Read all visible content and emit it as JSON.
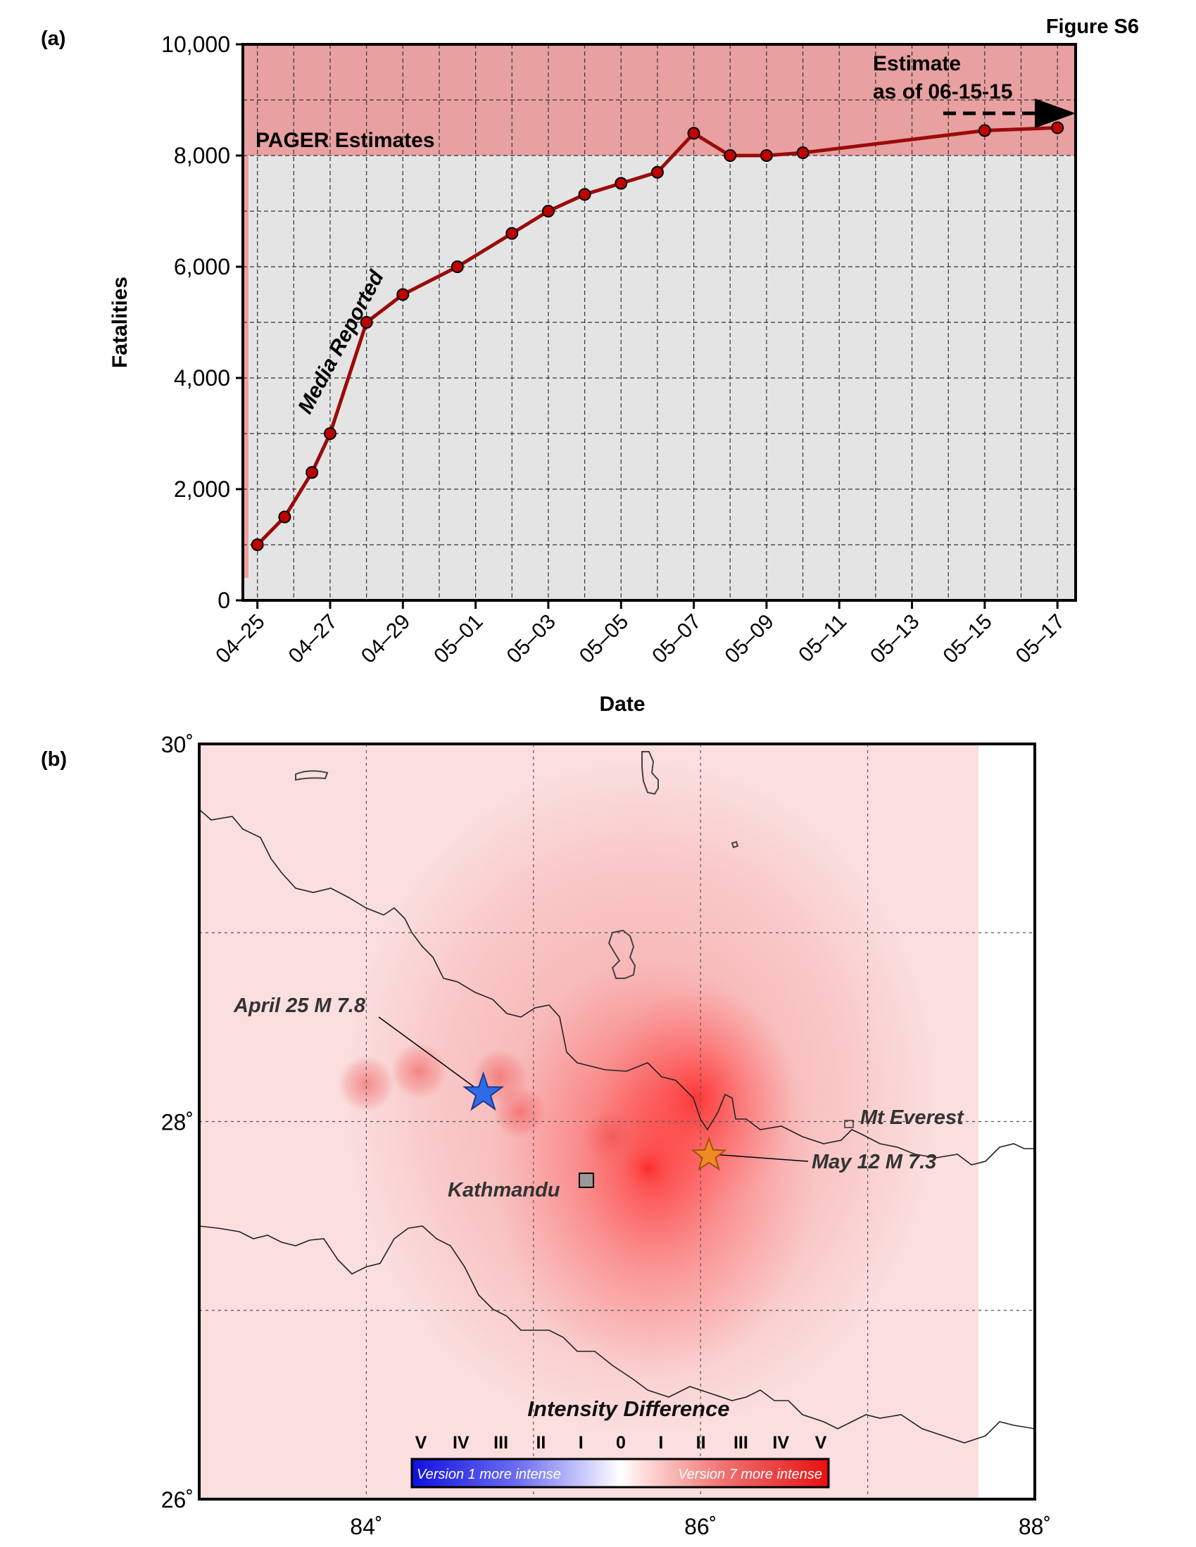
{
  "figure_label": "Figure S6",
  "chart_data": [
    {
      "panel": "(a)",
      "type": "line",
      "xlabel": "Date",
      "ylabel": "Fatalities",
      "xlim_days": [
        "04-24.6",
        "05-17.5"
      ],
      "ylim": [
        0,
        10000
      ],
      "x_tick_labels": [
        "04–25",
        "04–27",
        "04–29",
        "05–01",
        "05–03",
        "05–05",
        "05–07",
        "05–09",
        "05–11",
        "05–13",
        "05–15",
        "05–17"
      ],
      "y_tick_labels": [
        "0",
        "2,000",
        "4,000",
        "6,000",
        "8,000",
        "10,000"
      ],
      "y_ticks": [
        0,
        2000,
        4000,
        6000,
        8000,
        10000
      ],
      "grid": true,
      "band": {
        "label": "PAGER Estimates",
        "y_range": [
          8000,
          10000
        ],
        "color": "#e8a0a0"
      },
      "series": [
        {
          "name": "Media Reported",
          "color": "#9b0a0a",
          "x": [
            "04-25",
            "04-25.75",
            "04-26.5",
            "04-27",
            "04-28",
            "04-29",
            "04-30.5",
            "05-02",
            "05-03",
            "05-04",
            "05-05",
            "05-06",
            "05-07",
            "05-08",
            "05-09",
            "05-10",
            "05-15",
            "05-17"
          ],
          "y": [
            1000,
            1500,
            2300,
            3000,
            5000,
            5500,
            6000,
            6600,
            7000,
            7300,
            7500,
            7700,
            8400,
            8000,
            8000,
            8050,
            8450,
            8500
          ]
        }
      ],
      "annotations": [
        "Estimate",
        "as of 06-15-15"
      ]
    },
    {
      "panel": "(b)",
      "type": "heatmap",
      "x_tick_labels": [
        "84˚",
        "86˚",
        "88˚"
      ],
      "y_tick_labels": [
        "30˚",
        "28˚",
        "26˚"
      ],
      "xlim": [
        83,
        88
      ],
      "ylim": [
        26,
        30
      ],
      "colorbar": {
        "title": "Intensity Difference",
        "ticks": [
          "V",
          "IV",
          "III",
          "II",
          "I",
          "0",
          "I",
          "II",
          "III",
          "IV",
          "V"
        ],
        "left_label": "Version 1 more intense",
        "right_label": "Version 7 more intense"
      },
      "markers": [
        {
          "label": "April 25 M 7.8",
          "lon": 84.7,
          "lat": 28.15,
          "symbol": "star",
          "color": "#2f6be8"
        },
        {
          "label": "May 12 M 7.3",
          "lon": 86.05,
          "lat": 27.82,
          "symbol": "star",
          "color": "#f08a24"
        },
        {
          "label": "Kathmandu",
          "lon": 85.32,
          "lat": 27.7,
          "symbol": "square",
          "color": "#999999"
        },
        {
          "label": "Mt Everest",
          "lon": 86.92,
          "lat": 27.99,
          "symbol": "none",
          "color": "#444444"
        }
      ]
    }
  ]
}
